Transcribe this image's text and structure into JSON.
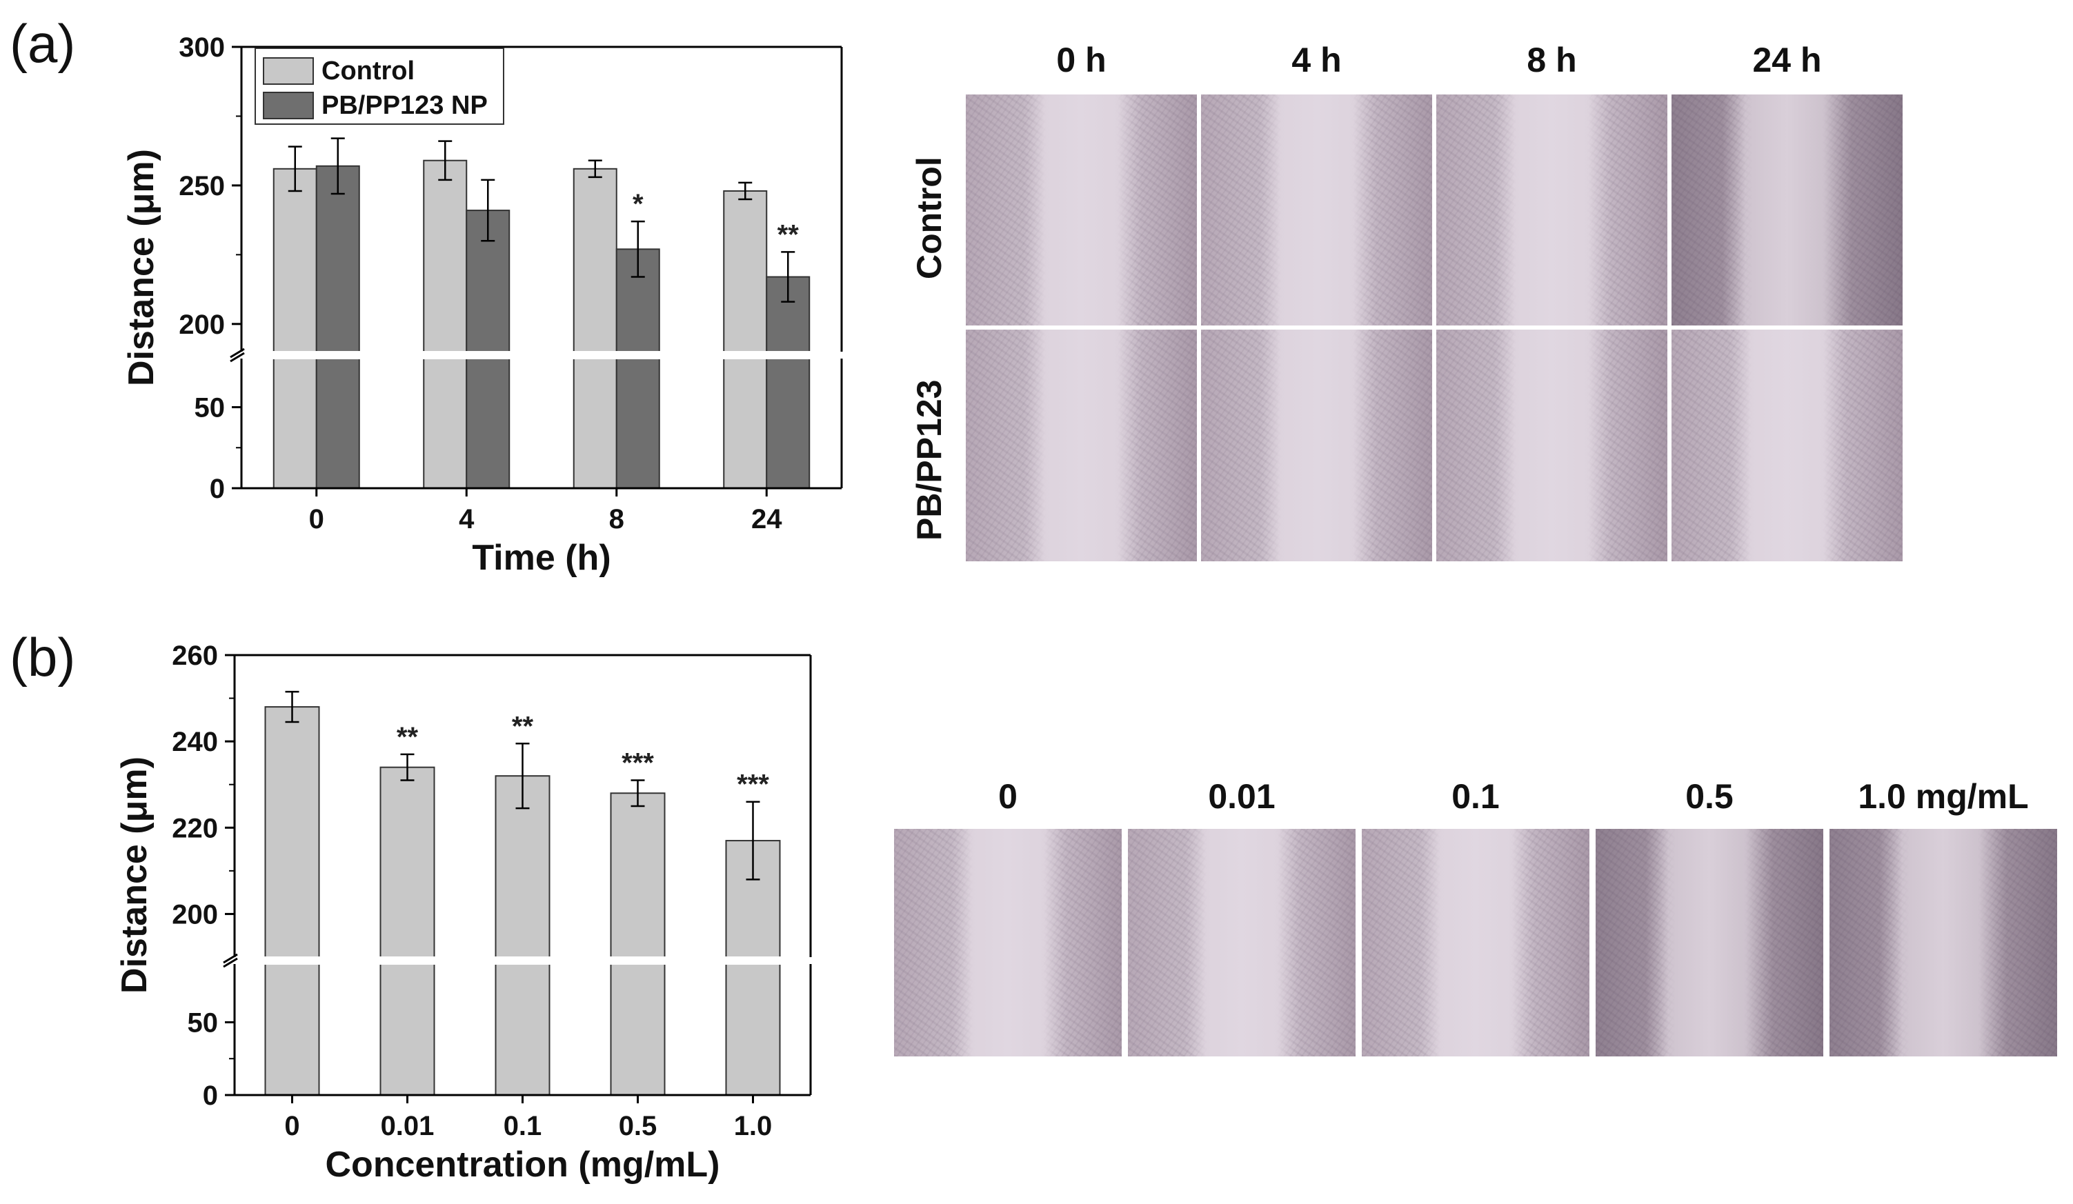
{
  "panels": {
    "a": "(a)",
    "b": "(b)"
  },
  "colors": {
    "control": "#c8c8c8",
    "treated": "#6f6f6f",
    "bar_edge": "#333333",
    "axis": "#000000"
  },
  "chart_data": [
    {
      "id": "a",
      "type": "bar",
      "xlabel": "Time (h)",
      "ylabel": "Distance (μm)",
      "categories": [
        "0",
        "4",
        "8",
        "24"
      ],
      "y_axis_break": [
        80,
        190
      ],
      "ylim_lower": [
        0,
        80
      ],
      "ylim_upper": [
        190,
        300
      ],
      "yticks": [
        0,
        50,
        200,
        250,
        300
      ],
      "legend_position": "top-left",
      "series": [
        {
          "name": "Control",
          "values": [
            256,
            259,
            256,
            248
          ],
          "errors": [
            8,
            7,
            3,
            3
          ],
          "annotations": [
            "",
            "",
            "",
            ""
          ]
        },
        {
          "name": "PB/PP123 NP",
          "values": [
            257,
            241,
            227,
            217
          ],
          "errors": [
            10,
            11,
            10,
            9
          ],
          "annotations": [
            "",
            "",
            "*",
            "**"
          ]
        }
      ]
    },
    {
      "id": "b",
      "type": "bar",
      "xlabel": "Concentration (mg/mL)",
      "ylabel": "Distance (μm)",
      "categories": [
        "0",
        "0.01",
        "0.1",
        "0.5",
        "1.0"
      ],
      "y_axis_break": [
        90,
        190
      ],
      "ylim_lower": [
        0,
        90
      ],
      "ylim_upper": [
        190,
        260
      ],
      "yticks": [
        0,
        50,
        200,
        220,
        240,
        260
      ],
      "series": [
        {
          "values": [
            248,
            234,
            232,
            228,
            217
          ],
          "errors": [
            3.5,
            3,
            7.5,
            3,
            9
          ],
          "annotations": [
            "",
            "**",
            "**",
            "***",
            "***"
          ]
        }
      ]
    }
  ],
  "micrographs_a": {
    "columns": [
      "0 h",
      "4 h",
      "8 h",
      "24 h"
    ],
    "rows": [
      "Control",
      "PB/PP123"
    ]
  },
  "micrographs_b": {
    "columns": [
      "0",
      "0.01",
      "0.1",
      "0.5",
      "1.0 mg/mL"
    ]
  }
}
